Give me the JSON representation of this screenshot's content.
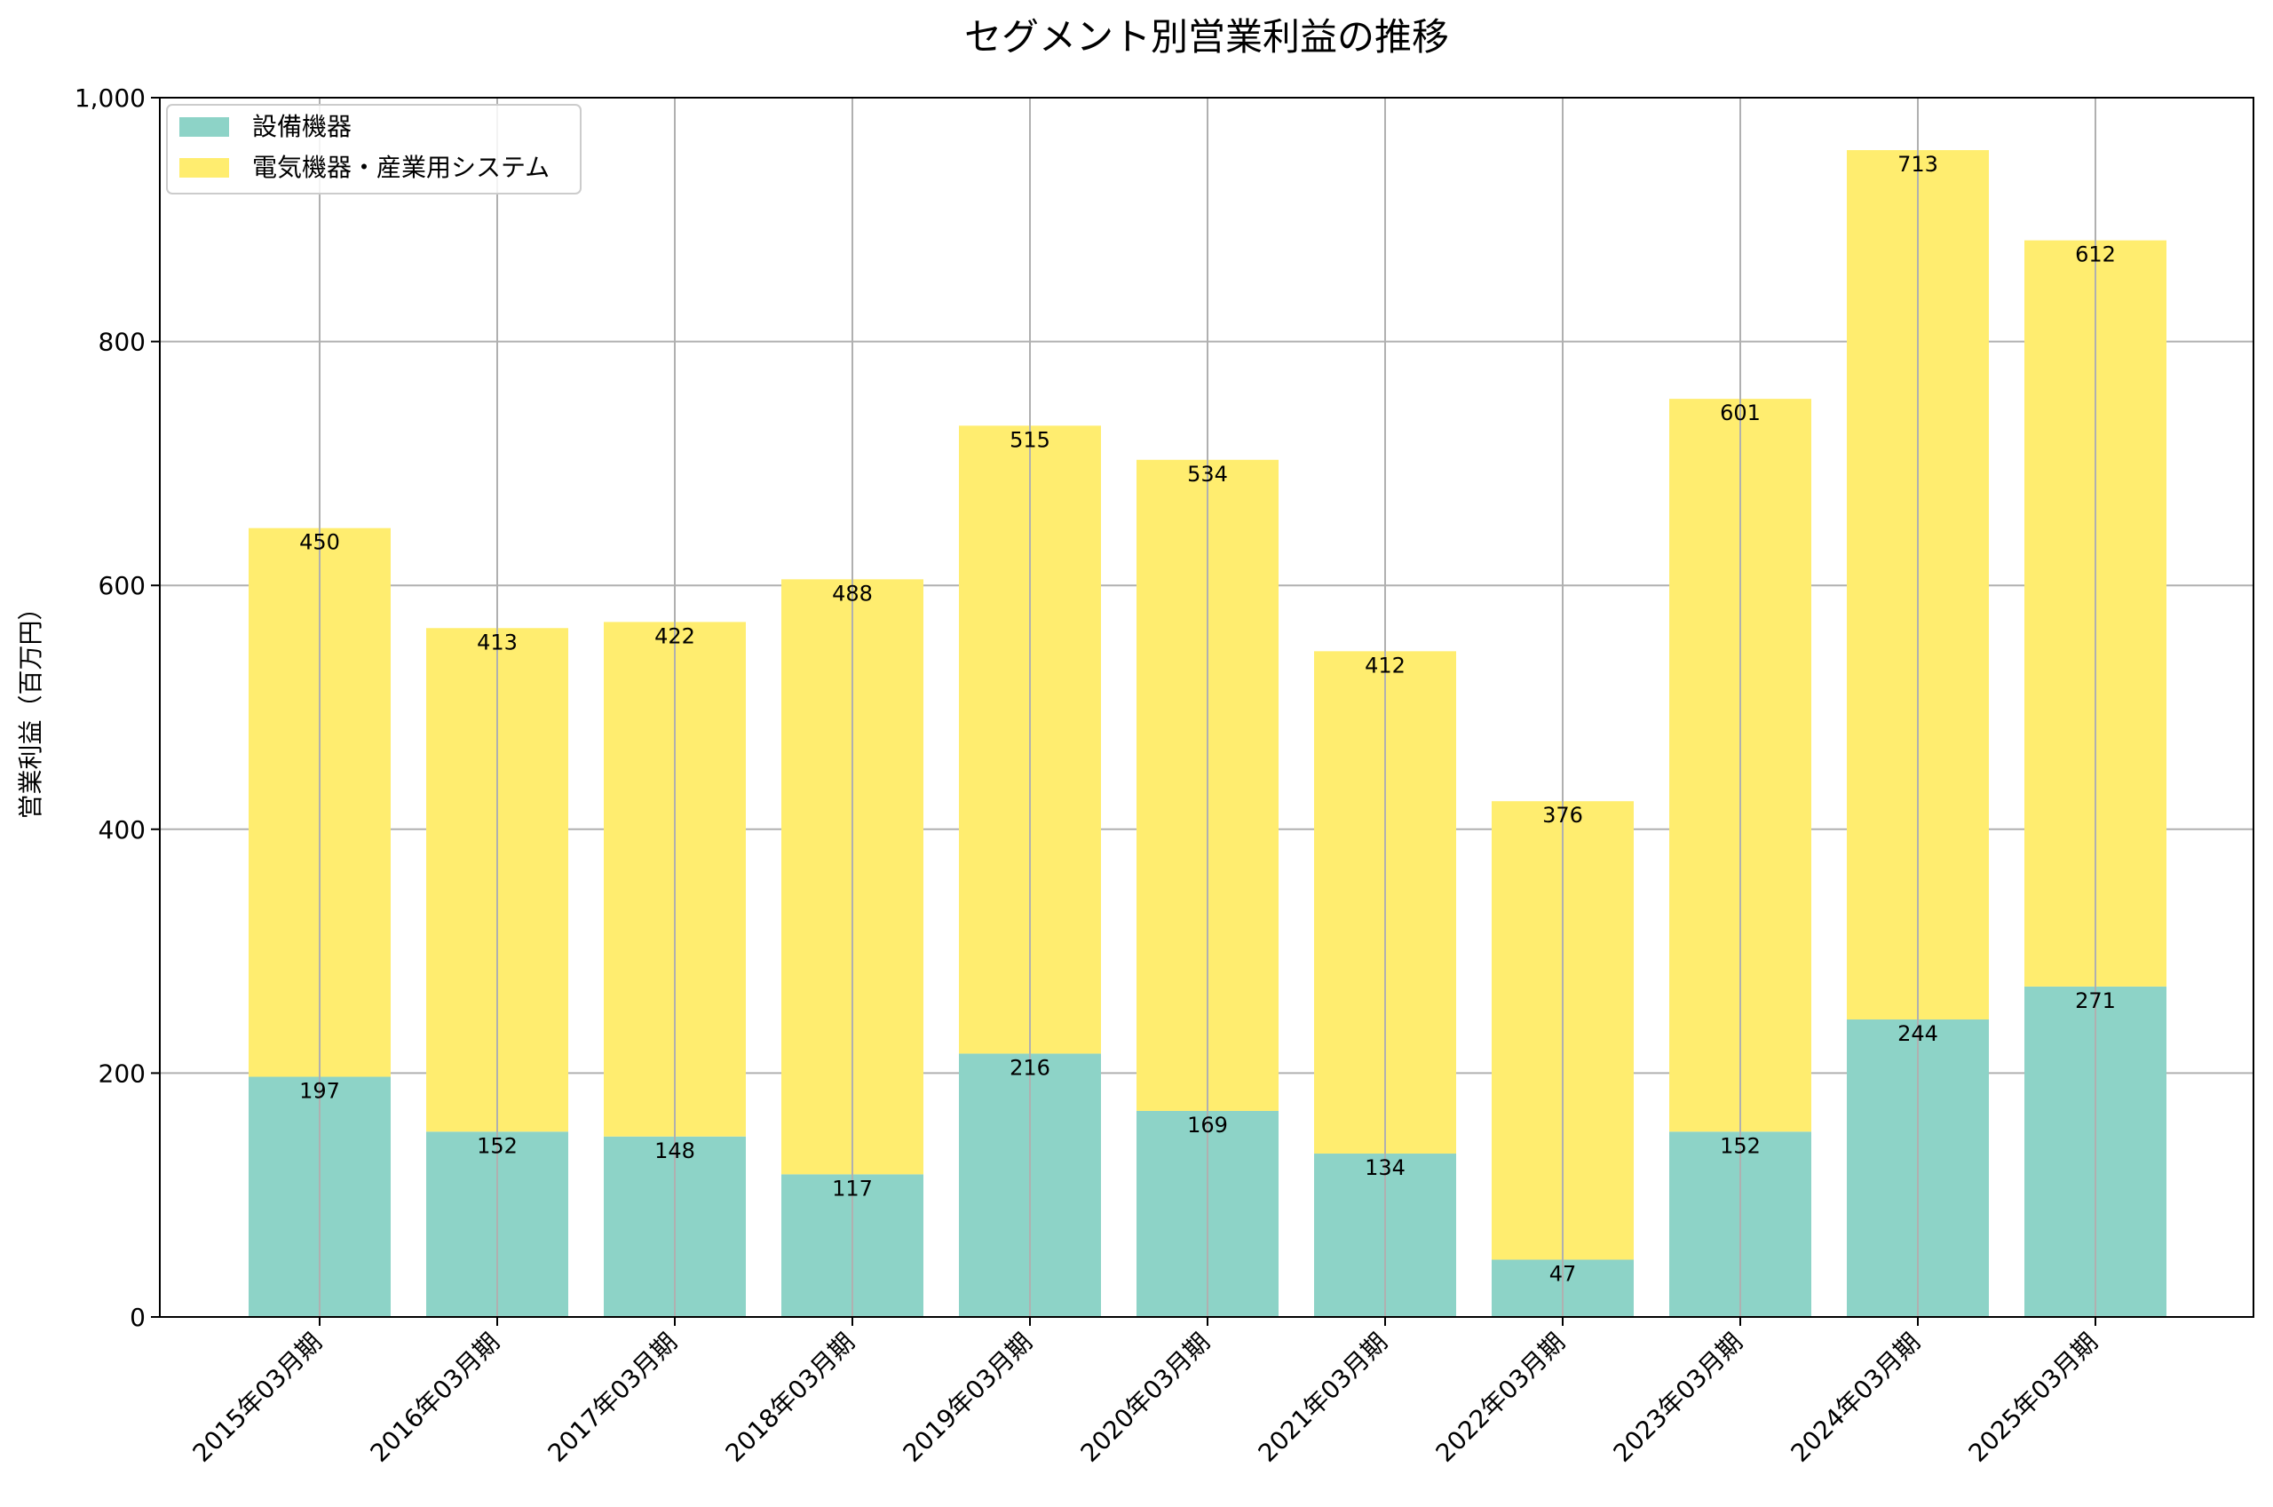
{
  "chart_data": {
    "type": "bar",
    "stacked": true,
    "title": "セグメント別営業利益の推移",
    "xlabel": "",
    "ylabel": "営業利益（百万円）",
    "ylim": [
      0,
      1000
    ],
    "yticks": [
      0,
      200,
      400,
      600,
      800,
      1000
    ],
    "ytick_labels": [
      "0",
      "200",
      "400",
      "600",
      "800",
      "1,000"
    ],
    "grid": true,
    "legend_position": "top-left",
    "categories": [
      "2015年03月期",
      "2016年03月期",
      "2017年03月期",
      "2018年03月期",
      "2019年03月期",
      "2020年03月期",
      "2021年03月期",
      "2022年03月期",
      "2023年03月期",
      "2024年03月期",
      "2025年03月期"
    ],
    "series": [
      {
        "name": "設備機器",
        "color": "#8dd3c7",
        "values": [
          197,
          152,
          148,
          117,
          216,
          169,
          134,
          47,
          152,
          244,
          271
        ]
      },
      {
        "name": "電気機器・産業用システム",
        "color": "#ffed6f",
        "values": [
          450,
          413,
          422,
          488,
          515,
          534,
          412,
          376,
          601,
          713,
          612
        ]
      }
    ]
  }
}
